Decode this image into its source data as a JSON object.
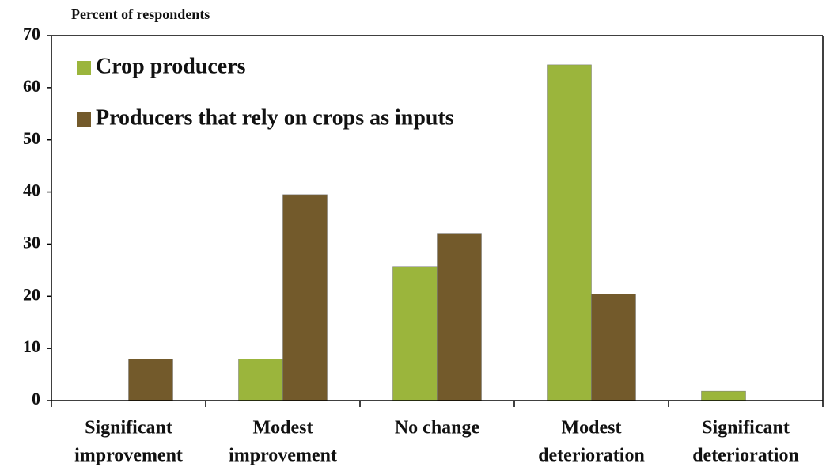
{
  "chart_data": {
    "type": "bar",
    "y_label": "Percent of respondents",
    "categories": [
      [
        "Significant",
        "improvement"
      ],
      [
        "Modest",
        "improvement"
      ],
      [
        "No change"
      ],
      [
        "Modest",
        "deterioration"
      ],
      [
        "Significant",
        "deterioration"
      ]
    ],
    "series": [
      {
        "name": "Crop producers",
        "color": "#9bb53c",
        "values": [
          0,
          8,
          25.7,
          64.4,
          1.8
        ]
      },
      {
        "name": "Producers that rely on crops as inputs",
        "color": "#735a2b",
        "values": [
          8,
          39.5,
          32.1,
          20.4,
          0
        ]
      }
    ],
    "ylim": [
      0,
      70
    ],
    "yticks": [
      0,
      10,
      20,
      30,
      40,
      50,
      60,
      70
    ],
    "legend": "top-left"
  }
}
